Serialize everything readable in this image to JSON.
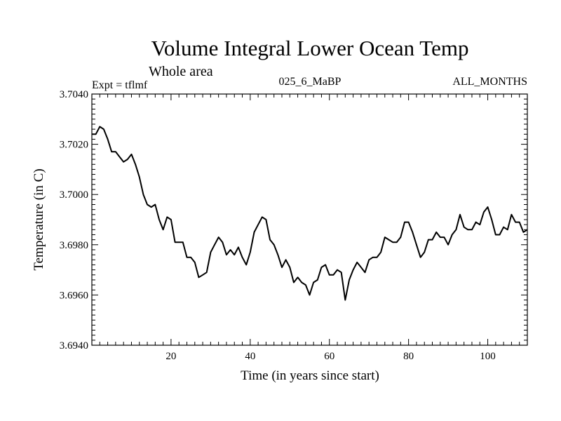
{
  "chart_data": {
    "type": "line",
    "title": "Volume Integral Lower Ocean Temp",
    "subtitle_left": "Whole area",
    "experiment_label": "Expt = tflmf",
    "center_label": "025_6_MaBP",
    "right_label": "ALL_MONTHS",
    "xlabel": "Time (in years since start)",
    "ylabel": "Temperature (in C)",
    "xlim": [
      0,
      110
    ],
    "ylim": [
      3.694,
      3.704
    ],
    "x_ticks": [
      20,
      40,
      60,
      80,
      100
    ],
    "x_tick_labels": [
      "20",
      "40",
      "60",
      "80",
      "100"
    ],
    "y_ticks": [
      3.694,
      3.696,
      3.698,
      3.7,
      3.702,
      3.704
    ],
    "y_tick_labels": [
      "3.6940",
      "3.6960",
      "3.6980",
      "3.7000",
      "3.7020",
      "3.7040"
    ],
    "x_minor_step": 2,
    "y_minor_step": 0.0002,
    "series": [
      {
        "name": "Volume Integral Lower Ocean Temp",
        "color": "#000000",
        "x": [
          0,
          1,
          2,
          3,
          4,
          5,
          6,
          7,
          8,
          9,
          10,
          11,
          12,
          13,
          14,
          15,
          16,
          17,
          18,
          19,
          20,
          21,
          22,
          23,
          24,
          25,
          26,
          27,
          28,
          29,
          30,
          31,
          32,
          33,
          34,
          35,
          36,
          37,
          38,
          39,
          40,
          41,
          42,
          43,
          44,
          45,
          46,
          47,
          48,
          49,
          50,
          51,
          52,
          53,
          54,
          55,
          56,
          57,
          58,
          59,
          60,
          61,
          62,
          63,
          64,
          65,
          66,
          67,
          68,
          69,
          70,
          71,
          72,
          73,
          74,
          75,
          76,
          77,
          78,
          79,
          80,
          81,
          82,
          83,
          84,
          85,
          86,
          87,
          88,
          89,
          90,
          91,
          92,
          93,
          94,
          95,
          96,
          97,
          98,
          99,
          100,
          101,
          102,
          103,
          104,
          105,
          106,
          107,
          108,
          109,
          110
        ],
        "values": [
          3.7024,
          3.7024,
          3.7027,
          3.7026,
          3.7022,
          3.7017,
          3.7017,
          3.7015,
          3.7013,
          3.7014,
          3.7016,
          3.7012,
          3.7007,
          3.7,
          3.6996,
          3.6995,
          3.6996,
          3.699,
          3.6986,
          3.6991,
          3.699,
          3.6981,
          3.6981,
          3.6981,
          3.6975,
          3.6975,
          3.6973,
          3.6967,
          3.6968,
          3.6969,
          3.6977,
          3.698,
          3.6983,
          3.6981,
          3.6976,
          3.6978,
          3.6976,
          3.6979,
          3.6975,
          3.6972,
          3.6977,
          3.6985,
          3.6988,
          3.6991,
          3.699,
          3.6982,
          3.698,
          3.6976,
          3.6971,
          3.6974,
          3.6971,
          3.6965,
          3.6967,
          3.6965,
          3.6964,
          3.696,
          3.6965,
          3.6966,
          3.6971,
          3.6972,
          3.6968,
          3.6968,
          3.697,
          3.6969,
          3.6958,
          3.6966,
          3.697,
          3.6973,
          3.6971,
          3.6969,
          3.6974,
          3.6975,
          3.6975,
          3.6977,
          3.6983,
          3.6982,
          3.6981,
          3.6981,
          3.6983,
          3.6989,
          3.6989,
          3.6985,
          3.698,
          3.6975,
          3.6977,
          3.6982,
          3.6982,
          3.6985,
          3.6983,
          3.6983,
          3.698,
          3.6984,
          3.6986,
          3.6992,
          3.6987,
          3.6986,
          3.6986,
          3.6989,
          3.6988,
          3.6993,
          3.6995,
          3.699,
          3.6984,
          3.6984,
          3.6987,
          3.6986,
          3.6992,
          3.6989,
          3.6989,
          3.6985,
          3.6986
        ]
      }
    ]
  }
}
